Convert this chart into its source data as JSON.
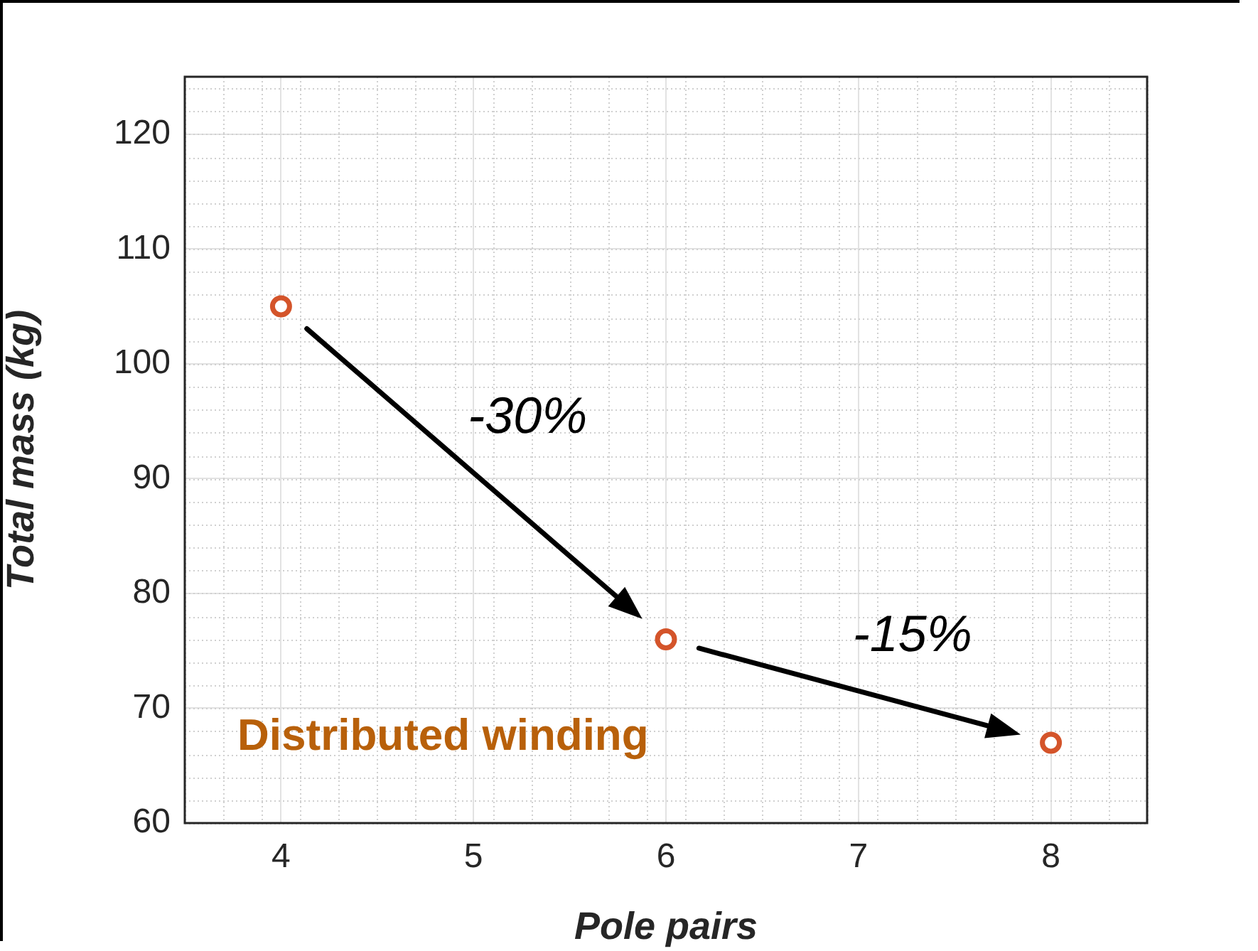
{
  "chart_data": {
    "type": "scatter",
    "xlabel": "Pole pairs",
    "ylabel": "Total mass (kg)",
    "x": [
      4,
      6,
      8
    ],
    "series": [
      {
        "color": "#d4542a",
        "values": [
          105,
          76,
          67
        ]
      }
    ],
    "xlim": [
      3.5,
      8.5
    ],
    "xticks": [
      4,
      5,
      6,
      7,
      8
    ],
    "ylim": [
      60,
      125
    ],
    "yticks": [
      60,
      70,
      80,
      90,
      100,
      110,
      120
    ],
    "grid": true,
    "marker": "circle",
    "legend": false,
    "annotations": [
      "-30%",
      "-15%",
      "Distributed winding"
    ]
  }
}
